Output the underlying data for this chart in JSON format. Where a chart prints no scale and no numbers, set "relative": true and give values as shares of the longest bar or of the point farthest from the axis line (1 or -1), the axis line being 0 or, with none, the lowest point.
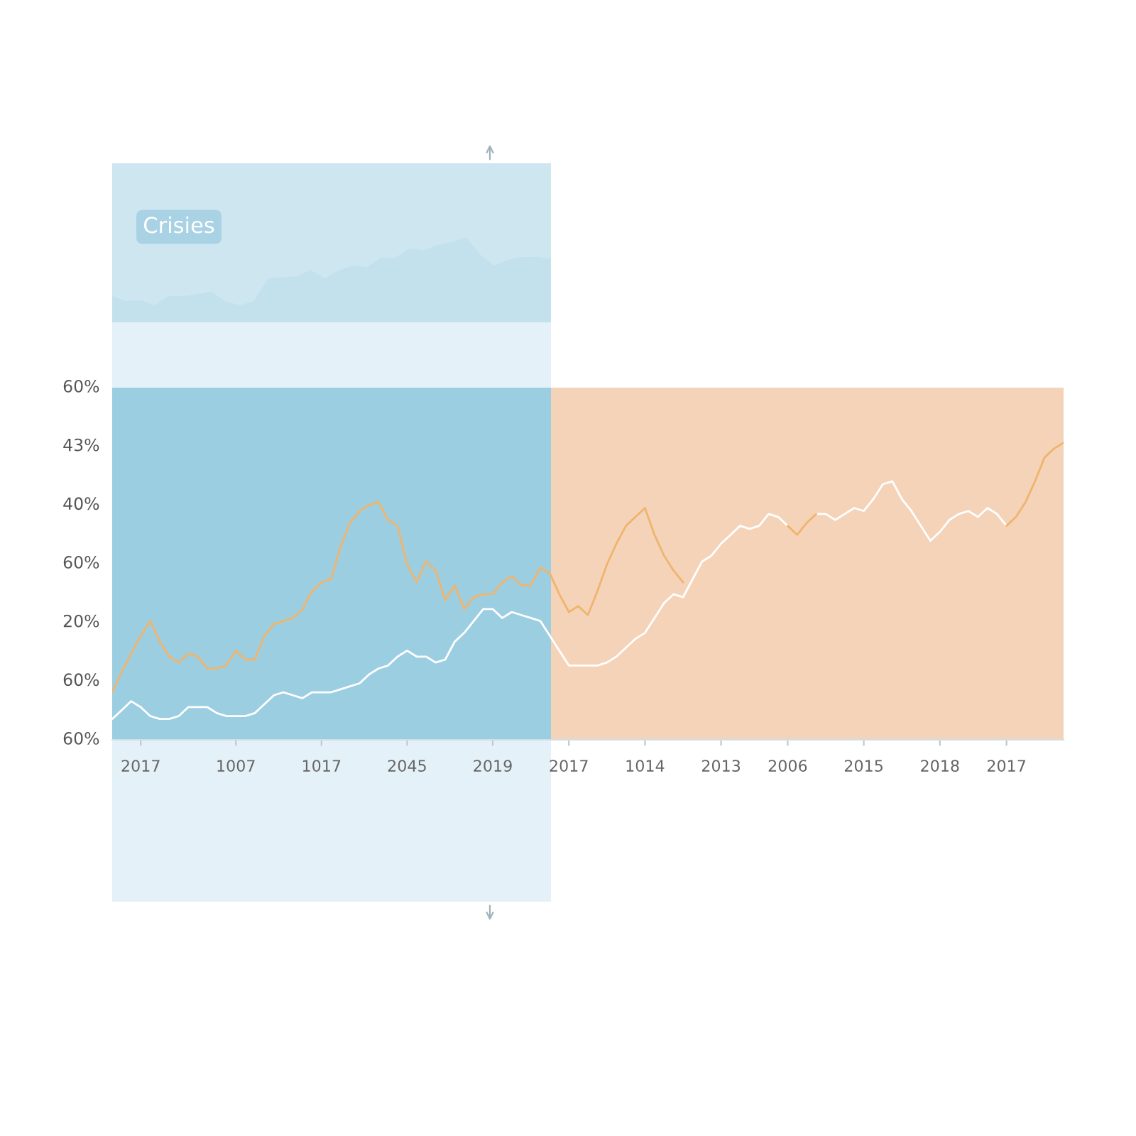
{
  "chart_data": [
    {
      "type": "area",
      "title": "Crisies",
      "relative": true,
      "color": "#c3e1ed",
      "categories": [
        null,
        null,
        null,
        null,
        null,
        null,
        null,
        null,
        null,
        null,
        null,
        null,
        null,
        null,
        null,
        null,
        null,
        null,
        null,
        null,
        null,
        null,
        null,
        null,
        null,
        null,
        null,
        null,
        null,
        null,
        null,
        null
      ],
      "values": [
        0.31,
        0.25,
        0.26,
        0.2,
        0.31,
        0.31,
        0.33,
        0.36,
        0.25,
        0.2,
        0.25,
        0.52,
        0.53,
        0.54,
        0.62,
        0.52,
        0.61,
        0.67,
        0.65,
        0.76,
        0.76,
        0.87,
        0.85,
        0.91,
        0.95,
        1.0,
        0.8,
        0.67,
        0.74,
        0.77,
        0.77,
        0.75
      ]
    },
    {
      "type": "line",
      "relative": true,
      "categories": [
        null,
        null,
        null,
        "2017",
        null,
        null,
        null,
        null,
        null,
        null,
        null,
        null,
        null,
        "1007",
        null,
        null,
        null,
        null,
        null,
        null,
        null,
        null,
        "1017",
        null,
        null,
        null,
        null,
        null,
        null,
        null,
        null,
        "2045",
        null,
        null,
        null,
        null,
        null,
        null,
        null,
        null,
        "2019",
        null,
        null,
        null,
        null,
        null,
        null,
        null,
        "2017",
        null,
        null,
        null,
        null,
        null,
        null,
        null,
        "1014",
        null,
        null,
        null,
        null,
        null,
        null,
        null,
        "2013",
        null,
        null,
        null,
        null,
        null,
        null,
        "2006",
        null,
        null,
        null,
        null,
        null,
        null,
        null,
        "2015",
        null,
        null,
        null,
        null,
        null,
        null,
        null,
        "2018",
        null,
        null,
        null,
        null,
        null,
        null,
        "2017",
        null,
        null,
        null,
        null,
        null,
        null
      ],
      "annotations": [
        "60%",
        "43%",
        "40%",
        "60%",
        "20%",
        "60%",
        "60%"
      ],
      "series": [
        {
          "color": "#ffffff",
          "values": [
            0.07,
            0.1,
            0.13,
            0.11,
            0.08,
            0.07,
            0.07,
            0.08,
            0.11,
            0.11,
            0.11,
            0.09,
            0.08,
            0.08,
            0.08,
            0.09,
            0.12,
            0.15,
            0.16,
            0.15,
            0.14,
            0.16,
            0.16,
            0.16,
            0.17,
            0.18,
            0.19,
            0.22,
            0.24,
            0.25,
            0.28,
            0.3,
            0.28,
            0.28,
            0.26,
            0.27,
            0.33,
            0.36,
            0.4,
            0.44,
            0.44,
            0.41,
            0.43,
            0.42,
            0.41,
            0.4,
            0.35,
            0.3,
            0.25,
            0.25,
            0.25,
            0.25,
            0.26,
            0.28,
            0.31,
            0.34,
            0.36,
            0.41,
            0.46,
            0.49,
            0.48,
            0.54,
            0.6,
            0.62,
            0.66,
            0.69,
            0.72,
            0.71,
            0.72,
            0.76,
            0.75,
            0.72,
            null,
            null,
            0.76,
            0.76,
            0.74,
            0.76,
            0.78,
            0.77,
            0.81,
            0.86,
            0.87,
            0.81,
            0.77,
            0.72,
            0.67,
            0.7,
            0.74,
            0.76,
            0.77,
            0.75,
            0.78,
            0.76,
            0.72,
            null,
            null,
            null,
            null,
            null,
            null
          ]
        },
        {
          "color": "#f0b46c",
          "values": [
            0.16,
            0.23,
            0.29,
            0.35,
            0.4,
            0.33,
            0.28,
            0.26,
            0.29,
            0.28,
            0.24,
            0.24,
            0.25,
            0.3,
            0.27,
            0.27,
            0.35,
            0.39,
            0.4,
            0.41,
            0.44,
            0.5,
            0.53,
            0.54,
            0.65,
            0.73,
            0.77,
            0.79,
            0.8,
            0.74,
            0.72,
            0.59,
            0.53,
            0.6,
            0.57,
            0.47,
            0.52,
            0.44,
            0.48,
            0.49,
            0.49,
            0.53,
            0.55,
            0.52,
            0.52,
            0.58,
            0.56,
            0.49,
            0.43,
            0.45,
            0.42,
            0.5,
            0.59,
            0.66,
            0.72,
            0.75,
            0.78,
            0.69,
            0.62,
            0.57,
            0.53,
            null,
            null,
            null,
            null,
            null,
            null,
            null,
            null,
            null,
            null,
            0.72,
            0.69,
            0.73,
            0.76,
            null,
            null,
            null,
            null,
            null,
            null,
            null,
            null,
            null,
            null,
            null,
            null,
            null,
            null,
            null,
            null,
            null,
            null,
            null,
            0.72,
            0.75,
            0.8,
            0.87,
            0.95,
            0.98,
            1.0
          ]
        }
      ]
    }
  ]
}
